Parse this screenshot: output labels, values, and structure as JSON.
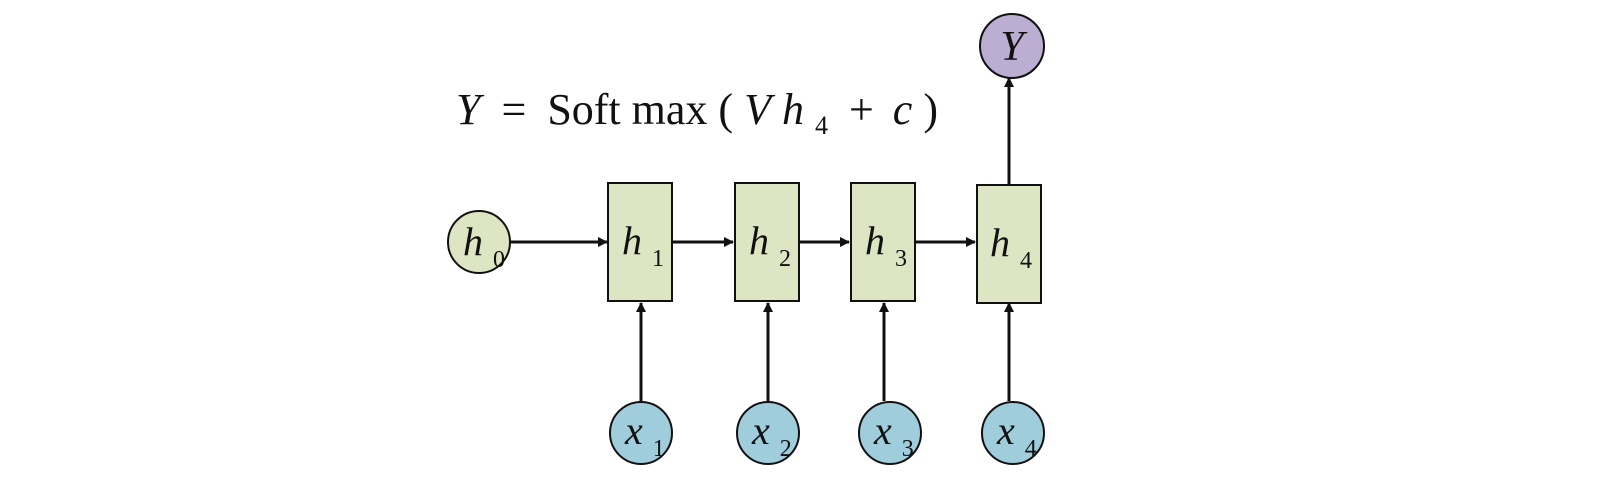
{
  "formula": {
    "lhs": "Y",
    "equals": "=",
    "func": "Soft max",
    "open_paren": "(",
    "var_v": "V",
    "var_h": "h",
    "var_h_sub": "4",
    "plus": "+",
    "var_c": "c",
    "close_paren": ")"
  },
  "initial_state": {
    "letter": "h",
    "sub": "0"
  },
  "hidden_states": [
    {
      "letter": "h",
      "sub": "1"
    },
    {
      "letter": "h",
      "sub": "2"
    },
    {
      "letter": "h",
      "sub": "3"
    },
    {
      "letter": "h",
      "sub": "4"
    }
  ],
  "inputs": [
    {
      "letter": "x",
      "sub": "1"
    },
    {
      "letter": "x",
      "sub": "2"
    },
    {
      "letter": "x",
      "sub": "3"
    },
    {
      "letter": "x",
      "sub": "4"
    }
  ],
  "output": {
    "letter": "Y"
  },
  "colors": {
    "hidden_fill": "#dde5c3",
    "initial_fill": "#dde5c3",
    "input_fill": "#9fcddb",
    "output_fill": "#bcaed3",
    "stroke": "#111111"
  }
}
